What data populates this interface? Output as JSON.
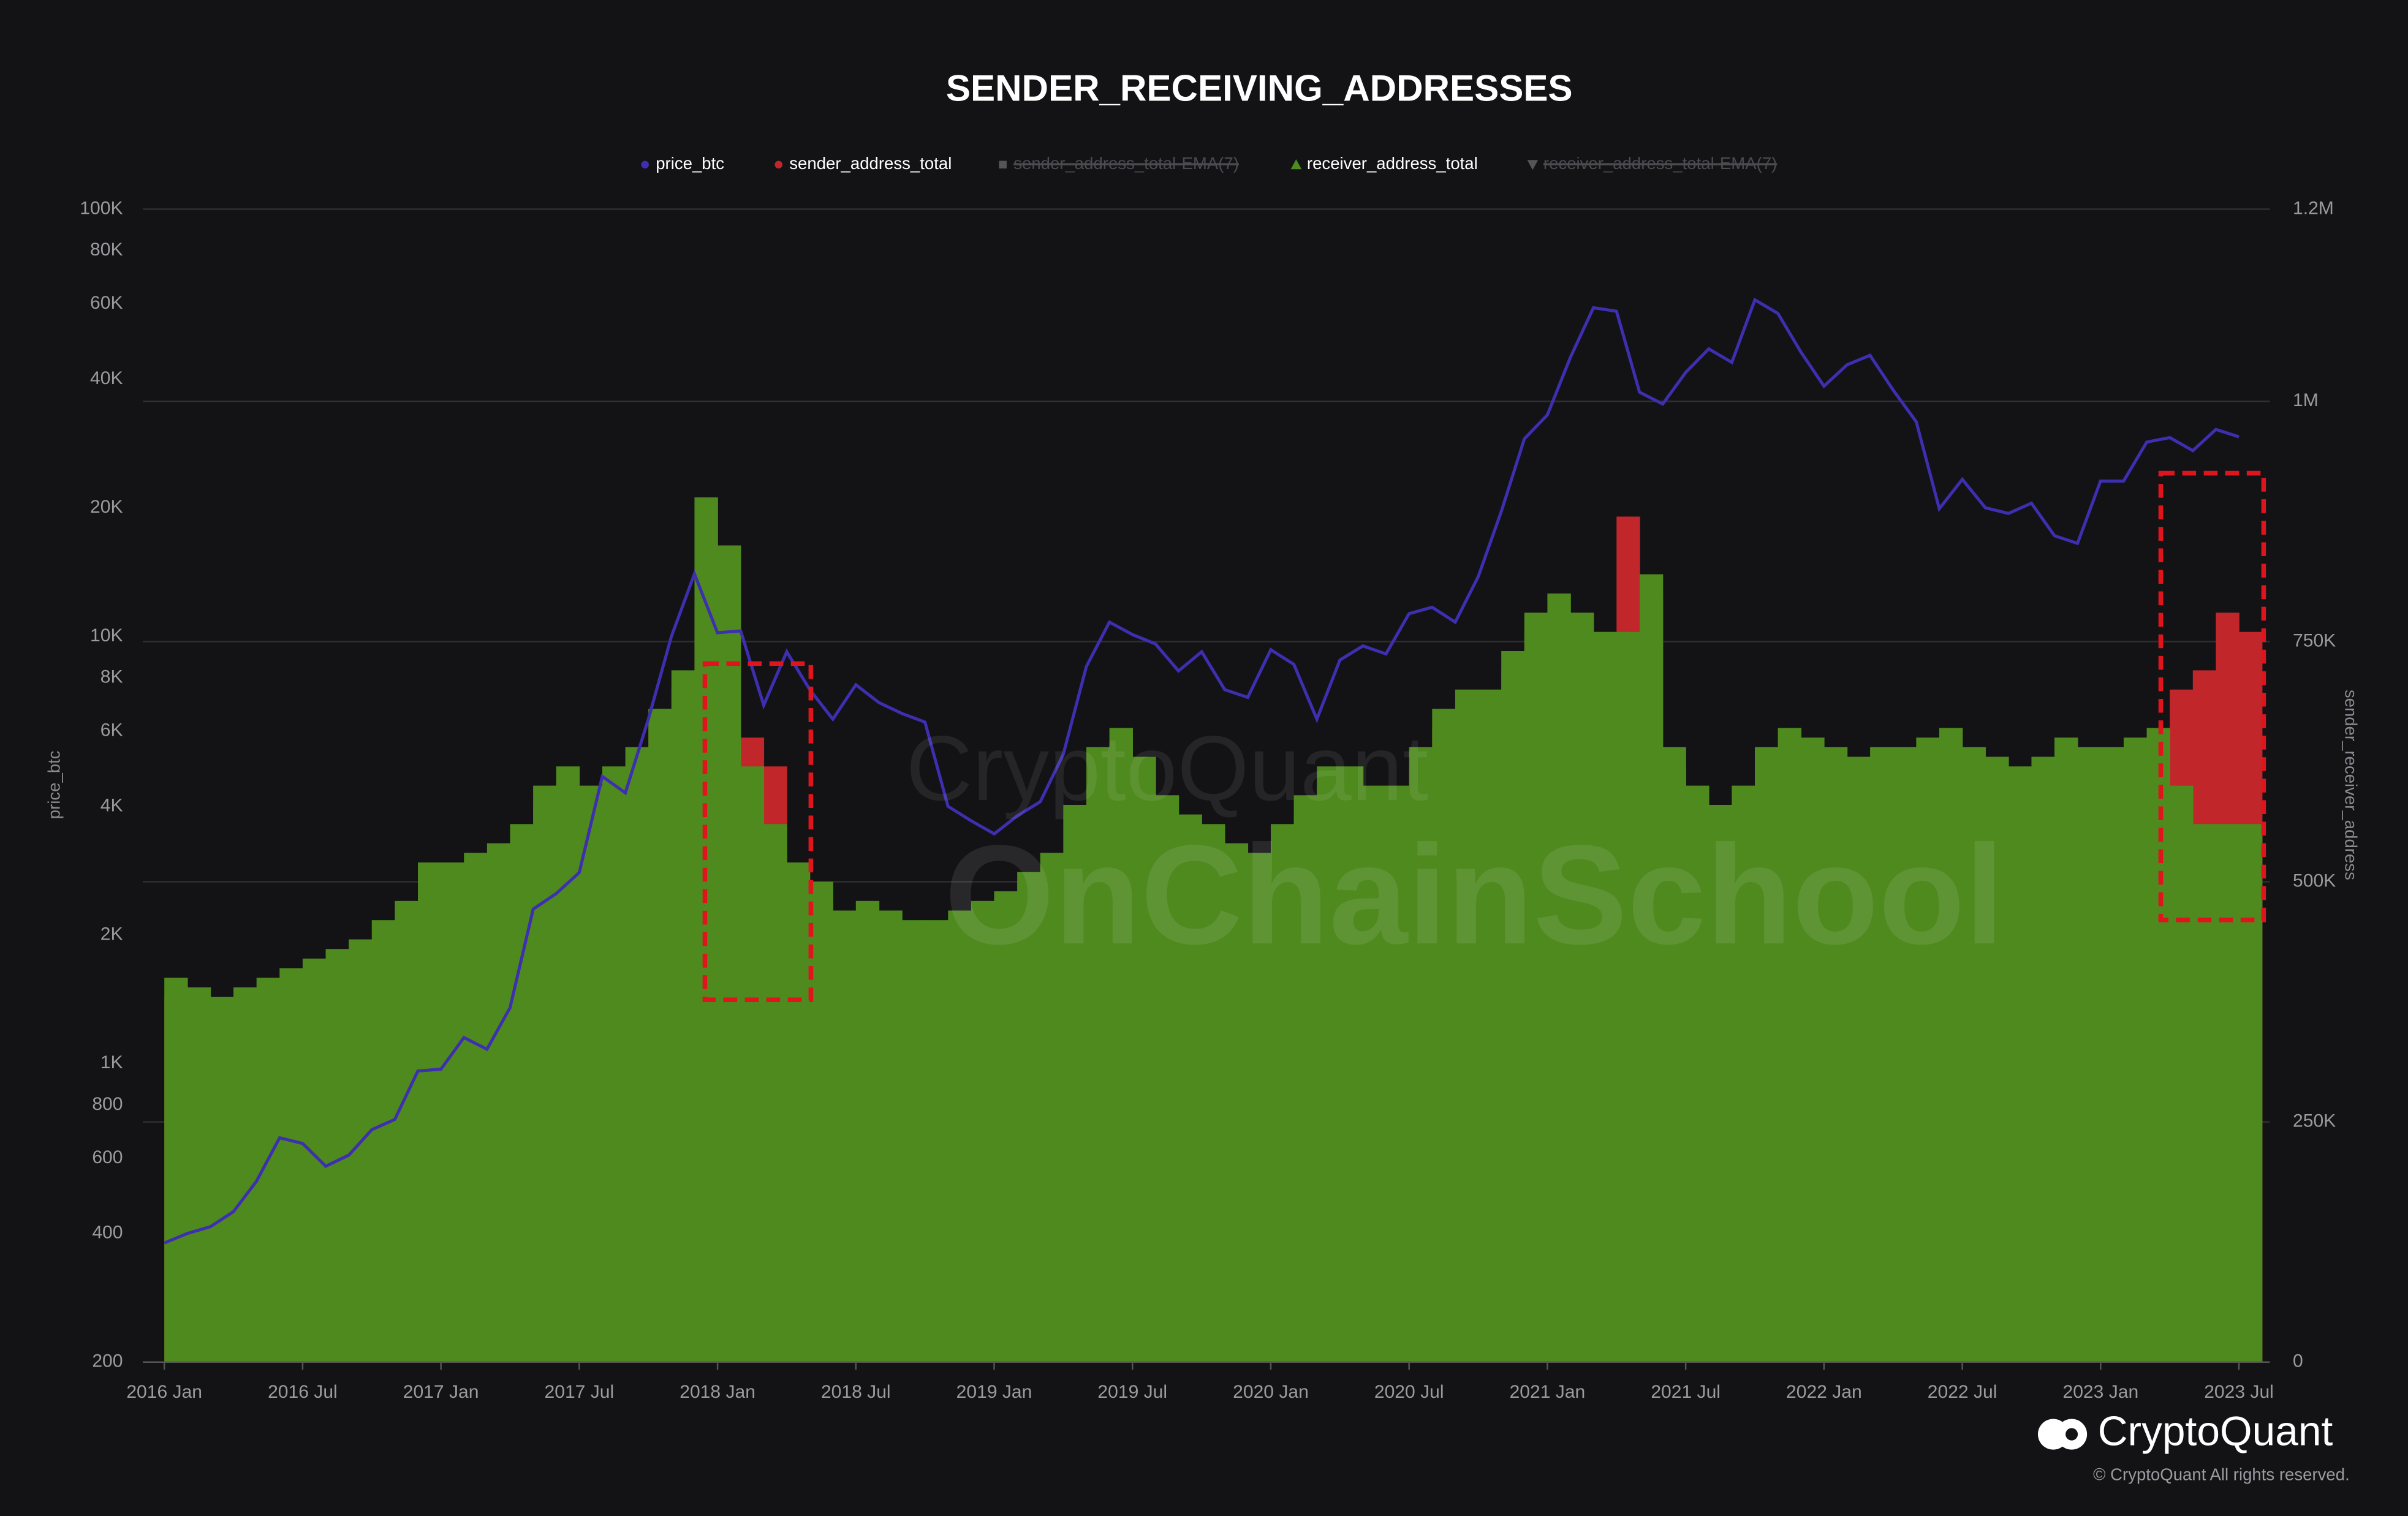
{
  "chart_data": {
    "type": "bar_line",
    "title": "SENDER_RECEIVING_ADDRESSES",
    "y_label": "price_btc",
    "y2_label": "sender_receiver_address",
    "log_y": true,
    "grid": true,
    "legend": "top",
    "x": [
      "2016-01",
      "2016-02",
      "2016-03",
      "2016-04",
      "2016-05",
      "2016-06",
      "2016-07",
      "2016-08",
      "2016-09",
      "2016-10",
      "2016-11",
      "2016-12",
      "2017-01",
      "2017-02",
      "2017-03",
      "2017-04",
      "2017-05",
      "2017-06",
      "2017-07",
      "2017-08",
      "2017-09",
      "2017-10",
      "2017-11",
      "2017-12",
      "2018-01",
      "2018-02",
      "2018-03",
      "2018-04",
      "2018-05",
      "2018-06",
      "2018-07",
      "2018-08",
      "2018-09",
      "2018-10",
      "2018-11",
      "2018-12",
      "2019-01",
      "2019-02",
      "2019-03",
      "2019-04",
      "2019-05",
      "2019-06",
      "2019-07",
      "2019-08",
      "2019-09",
      "2019-10",
      "2019-11",
      "2019-12",
      "2020-01",
      "2020-02",
      "2020-03",
      "2020-04",
      "2020-05",
      "2020-06",
      "2020-07",
      "2020-08",
      "2020-09",
      "2020-10",
      "2020-11",
      "2020-12",
      "2021-01",
      "2021-02",
      "2021-03",
      "2021-04",
      "2021-05",
      "2021-06",
      "2021-07",
      "2021-08",
      "2021-09",
      "2021-10",
      "2021-11",
      "2021-12",
      "2022-01",
      "2022-02",
      "2022-03",
      "2022-04",
      "2022-05",
      "2022-06",
      "2022-07",
      "2022-08",
      "2022-09",
      "2022-10",
      "2022-11",
      "2022-12",
      "2023-01",
      "2023-02",
      "2023-03",
      "2023-04",
      "2023-05",
      "2023-06",
      "2023-07"
    ],
    "series": [
      {
        "name": "price_btc",
        "color": "#3d2fb0",
        "axis": "y",
        "kind": "line",
        "values": [
          380,
          400,
          415,
          450,
          530,
          670,
          650,
          575,
          610,
          700,
          740,
          960,
          970,
          1150,
          1080,
          1350,
          2300,
          2500,
          2800,
          4700,
          4300,
          6400,
          10000,
          14000,
          10200,
          10300,
          6900,
          9200,
          7500,
          6400,
          7700,
          7000,
          6600,
          6300,
          4000,
          3700,
          3450,
          3800,
          4100,
          5300,
          8500,
          10800,
          10100,
          9600,
          8300,
          9200,
          7500,
          7200,
          9300,
          8600,
          6400,
          8800,
          9500,
          9100,
          11300,
          11700,
          10800,
          13800,
          19600,
          29000,
          33000,
          45000,
          58800,
          57700,
          37300,
          35000,
          41500,
          47100,
          43800,
          61300,
          57000,
          46300,
          38500,
          43200,
          45500,
          37700,
          31800,
          19900,
          23300,
          20000,
          19400,
          20500,
          17200,
          16500,
          23100,
          23100,
          28500,
          29200,
          27200,
          30500,
          29300
        ]
      },
      {
        "name": "sender_address_total",
        "color": "#c0262a",
        "axis": "y2",
        "kind": "bar",
        "values": [
          380,
          370,
          360,
          370,
          380,
          390,
          400,
          410,
          420,
          440,
          460,
          500,
          500,
          510,
          520,
          540,
          580,
          600,
          580,
          600,
          620,
          660,
          700,
          780,
          820,
          650,
          620,
          500,
          480,
          460,
          470,
          460,
          450,
          450,
          460,
          470,
          480,
          500,
          520,
          570,
          620,
          640,
          610,
          570,
          550,
          540,
          520,
          510,
          540,
          570,
          600,
          600,
          580,
          580,
          620,
          660,
          680,
          690,
          720,
          760,
          780,
          760,
          740,
          880,
          800,
          620,
          580,
          570,
          590,
          620,
          640,
          630,
          620,
          610,
          620,
          620,
          630,
          640,
          620,
          610,
          600,
          610,
          630,
          620,
          620,
          640,
          650,
          700,
          720,
          780,
          760
        ]
      },
      {
        "name": "receiver_address_total",
        "color": "#4f8a1f",
        "axis": "y2",
        "kind": "bar",
        "values": [
          400,
          390,
          380,
          390,
          400,
          410,
          420,
          430,
          440,
          460,
          480,
          520,
          520,
          530,
          540,
          560,
          600,
          620,
          600,
          620,
          640,
          680,
          720,
          900,
          850,
          620,
          560,
          520,
          500,
          470,
          480,
          470,
          460,
          460,
          470,
          480,
          490,
          510,
          530,
          580,
          640,
          660,
          630,
          590,
          570,
          560,
          540,
          530,
          560,
          590,
          620,
          620,
          600,
          600,
          640,
          680,
          700,
          700,
          740,
          780,
          800,
          780,
          760,
          760,
          820,
          640,
          600,
          580,
          600,
          640,
          660,
          650,
          640,
          630,
          640,
          640,
          650,
          660,
          640,
          630,
          620,
          630,
          650,
          640,
          640,
          650,
          660,
          600,
          560,
          560,
          560
        ]
      }
    ],
    "hidden_series": [
      {
        "name": "sender_address_total-EMA(7)",
        "color": "#555555"
      },
      {
        "name": "receiver_address_total-EMA(7)",
        "color": "#555555"
      }
    ],
    "xticks": [
      {
        "value": "2016-01",
        "label": "2016 Jan"
      },
      {
        "value": "2016-07",
        "label": "2016 Jul"
      },
      {
        "value": "2017-01",
        "label": "2017 Jan"
      },
      {
        "value": "2017-07",
        "label": "2017 Jul"
      },
      {
        "value": "2018-01",
        "label": "2018 Jan"
      },
      {
        "value": "2018-07",
        "label": "2018 Jul"
      },
      {
        "value": "2019-01",
        "label": "2019 Jan"
      },
      {
        "value": "2019-07",
        "label": "2019 Jul"
      },
      {
        "value": "2020-01",
        "label": "2020 Jan"
      },
      {
        "value": "2020-07",
        "label": "2020 Jul"
      },
      {
        "value": "2021-01",
        "label": "2021 Jan"
      },
      {
        "value": "2021-07",
        "label": "2021 Jul"
      },
      {
        "value": "2022-01",
        "label": "2022 Jan"
      },
      {
        "value": "2022-07",
        "label": "2022 Jul"
      },
      {
        "value": "2023-01",
        "label": "2023 Jan"
      },
      {
        "value": "2023-07",
        "label": "2023 Jul"
      }
    ],
    "ylim": [
      200,
      100000
    ],
    "yticks": [
      200,
      400,
      600,
      800,
      {
        "value": 1000,
        "label": "1K"
      },
      {
        "value": 2000,
        "label": "2K"
      },
      {
        "value": 4000,
        "label": "4K"
      },
      {
        "value": 6000,
        "label": "6K"
      },
      {
        "value": 8000,
        "label": "8K"
      },
      {
        "value": 10000,
        "label": "10K"
      },
      {
        "value": 20000,
        "label": "20K"
      },
      {
        "value": 40000,
        "label": "40K"
      },
      {
        "value": 60000,
        "label": "60K"
      },
      {
        "value": 80000,
        "label": "80K"
      },
      {
        "value": 100000,
        "label": "100K"
      }
    ],
    "y2lim": [
      0,
      1200
    ],
    "y2ticks": [
      0,
      {
        "value": 250,
        "label": "250K"
      },
      {
        "value": 500,
        "label": "500K"
      },
      {
        "value": 750,
        "label": "750K"
      },
      {
        "value": 1000,
        "label": "1M"
      },
      {
        "value": 1200,
        "label": "1.2M"
      }
    ],
    "y2_unit_note_free": true,
    "watermarks": [
      "CryptoQuant",
      "OnChainSchool"
    ],
    "branding": {
      "logo": "CryptoQuant",
      "copyright": "© CryptoQuant All rights reserved."
    }
  }
}
